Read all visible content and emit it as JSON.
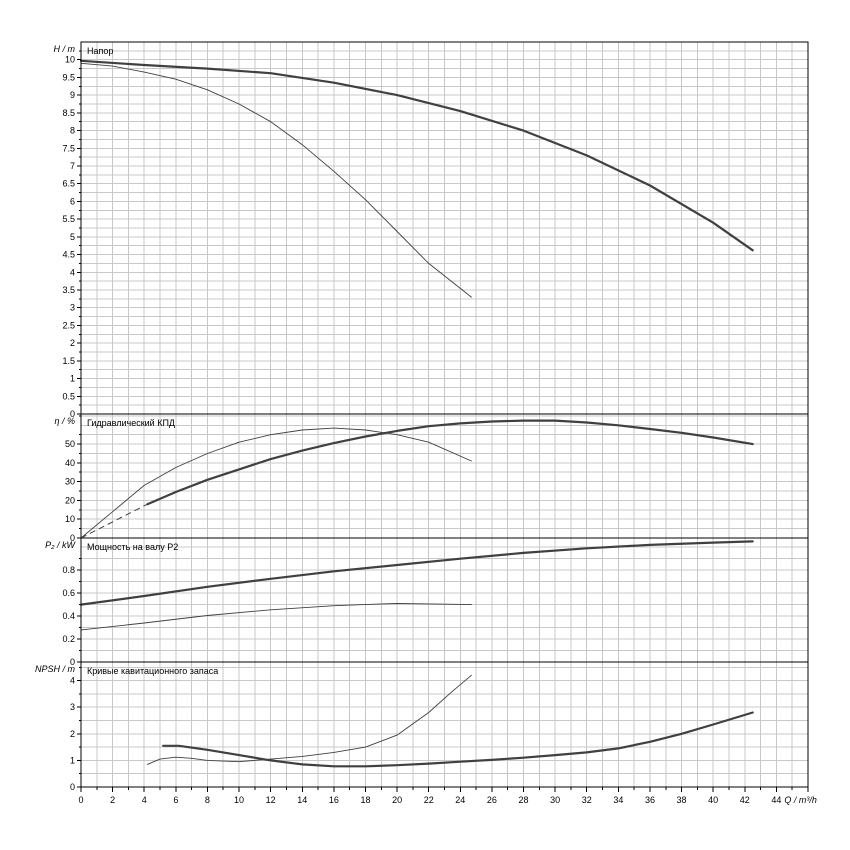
{
  "chart_data": [
    {
      "type": "line",
      "title": "Напор",
      "ylabel": "H / m",
      "ylim": [
        0,
        10.5
      ],
      "yticks": [
        0,
        0.5,
        1,
        1.5,
        2,
        2.5,
        3,
        3.5,
        4,
        4.5,
        5,
        5.5,
        6,
        6.5,
        7,
        7.5,
        8,
        8.5,
        9,
        9.5,
        10
      ],
      "series": [
        {
          "color": "#404040",
          "weight": "bold",
          "x": [
            0,
            4,
            8,
            12,
            16,
            20,
            24,
            28,
            32,
            36,
            40,
            42.5
          ],
          "y": [
            9.97,
            9.85,
            9.75,
            9.62,
            9.35,
            9.0,
            8.55,
            8.0,
            7.3,
            6.45,
            5.4,
            4.62
          ]
        },
        {
          "color": "#404040",
          "weight": "thin",
          "x": [
            0,
            2,
            4,
            6,
            8,
            10,
            12,
            14,
            16,
            18,
            20,
            22,
            24.7
          ],
          "y": [
            9.9,
            9.82,
            9.65,
            9.45,
            9.15,
            8.75,
            8.25,
            7.6,
            6.85,
            6.05,
            5.15,
            4.25,
            3.3
          ]
        }
      ]
    },
    {
      "type": "line",
      "title": "Гидравлический КПД",
      "ylabel": "η / %",
      "ylim": [
        0,
        66
      ],
      "yticks": [
        0,
        10,
        20,
        30,
        40,
        50
      ],
      "series": [
        {
          "color": "#404040",
          "weight": "bold",
          "x": [
            4.2,
            6,
            8,
            10,
            12,
            14,
            16,
            18,
            20,
            22,
            24,
            26,
            28,
            30,
            32,
            34,
            36,
            38,
            40,
            42.5
          ],
          "y": [
            18,
            24.5,
            31,
            36.5,
            42,
            46.5,
            50.5,
            54,
            57,
            59.5,
            61,
            62,
            62.5,
            62.5,
            61.5,
            60,
            58,
            56,
            53.5,
            50
          ]
        },
        {
          "color": "#404040",
          "weight": "thin",
          "x": [
            0,
            2,
            4,
            6,
            8,
            10,
            12,
            14,
            16,
            18,
            20,
            22,
            24.7
          ],
          "y": [
            0,
            14,
            28,
            37.5,
            45,
            51,
            55,
            57.5,
            58.5,
            57.5,
            55,
            51,
            41
          ]
        }
      ]
    },
    {
      "type": "line",
      "title": "Мощность на валу P2",
      "ylabel": "P₂ / kW",
      "ylim": [
        0,
        1.08
      ],
      "yticks": [
        0,
        0.2,
        0.4,
        0.6,
        0.8
      ],
      "series": [
        {
          "color": "#404040",
          "weight": "bold",
          "x": [
            0,
            4,
            8,
            12,
            16,
            20,
            24,
            28,
            32,
            36,
            40,
            42.5
          ],
          "y": [
            0.5,
            0.575,
            0.655,
            0.725,
            0.79,
            0.845,
            0.9,
            0.95,
            0.99,
            1.02,
            1.04,
            1.05
          ]
        },
        {
          "color": "#404040",
          "weight": "thin",
          "x": [
            0,
            4,
            8,
            12,
            16,
            20,
            24.7
          ],
          "y": [
            0.28,
            0.34,
            0.405,
            0.455,
            0.49,
            0.51,
            0.5
          ]
        }
      ]
    },
    {
      "type": "line",
      "title": "Кривые кавитационного запаса",
      "ylabel": "NPSH / m",
      "ylim": [
        0,
        4.7
      ],
      "yticks": [
        0,
        1,
        2,
        3,
        4
      ],
      "xlabel": "Q / m³/h",
      "xlim": [
        0,
        46
      ],
      "xticks": [
        0,
        2,
        4,
        6,
        8,
        10,
        12,
        14,
        16,
        18,
        20,
        22,
        24,
        26,
        28,
        30,
        32,
        34,
        36,
        38,
        40,
        42
      ],
      "xlabel_tick": "44",
      "series": [
        {
          "color": "#404040",
          "weight": "bold",
          "x": [
            5.2,
            6.2,
            8,
            10,
            12,
            14,
            16,
            18,
            20,
            22,
            24,
            26,
            28,
            30,
            32,
            34,
            36,
            38,
            40,
            42.5
          ],
          "y": [
            1.55,
            1.55,
            1.4,
            1.2,
            1.0,
            0.85,
            0.78,
            0.78,
            0.82,
            0.88,
            0.95,
            1.02,
            1.1,
            1.2,
            1.3,
            1.45,
            1.7,
            2.0,
            2.35,
            2.8
          ]
        },
        {
          "color": "#404040",
          "weight": "thin",
          "x": [
            4.2,
            5,
            6,
            7,
            8,
            10,
            12,
            14,
            16,
            18,
            20,
            22,
            23.5,
            24.7
          ],
          "y": [
            0.85,
            1.05,
            1.12,
            1.08,
            1.0,
            0.95,
            1.05,
            1.15,
            1.3,
            1.5,
            1.95,
            2.8,
            3.6,
            4.2
          ]
        }
      ]
    }
  ]
}
